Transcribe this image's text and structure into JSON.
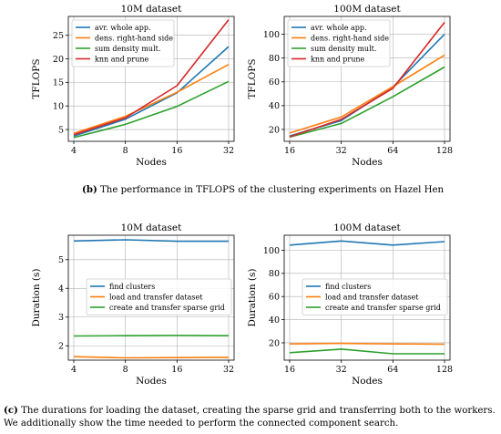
{
  "captions": {
    "b_label": "(b)",
    "b_text": "The performance in TFLOPS of the clustering experiments on Hazel Hen",
    "c_label": "(c)",
    "c_line1": "The durations for loading the dataset, creating the sparse grid and transferring both to the workers.",
    "c_line2": "We additionally show the time needed to perform the connected component search."
  },
  "colors": {
    "blue": "#1f77b4",
    "orange": "#ff7f0e",
    "green": "#2ca02c",
    "red": "#d62728"
  },
  "chart_data": [
    {
      "type": "line",
      "title": "10M dataset",
      "xlabel": "Nodes",
      "ylabel": "TFLOPS",
      "x_scale": "log2",
      "categories": [
        "4",
        "8",
        "16",
        "32"
      ],
      "ylim": [
        2.5,
        29
      ],
      "yticks": [
        5,
        10,
        15,
        20,
        25
      ],
      "grid": true,
      "legend": "upper-left",
      "series": [
        {
          "name": "avr. whole app.",
          "color": "blue",
          "values": [
            3.6,
            7.2,
            12.8,
            22.6
          ]
        },
        {
          "name": "dens. right-hand side",
          "color": "orange",
          "values": [
            4.2,
            7.8,
            12.9,
            18.8
          ]
        },
        {
          "name": "sum density mult.",
          "color": "green",
          "values": [
            3.3,
            6.1,
            9.9,
            15.2
          ]
        },
        {
          "name": "knn and prune",
          "color": "red",
          "values": [
            3.9,
            7.5,
            14.3,
            28.3
          ]
        }
      ]
    },
    {
      "type": "line",
      "title": "100M dataset",
      "xlabel": "Nodes",
      "ylabel": "TFLOPS",
      "x_scale": "log2",
      "categories": [
        "16",
        "32",
        "64",
        "128"
      ],
      "ylim": [
        10,
        115
      ],
      "yticks": [
        20,
        40,
        60,
        80,
        100
      ],
      "grid": true,
      "legend": "upper-left",
      "series": [
        {
          "name": "avr. whole app.",
          "color": "blue",
          "values": [
            14.5,
            27.5,
            55.5,
            100
          ]
        },
        {
          "name": "dens. right-hand side",
          "color": "orange",
          "values": [
            17,
            30.5,
            56,
            82.5
          ]
        },
        {
          "name": "sum density mult.",
          "color": "green",
          "values": [
            13.5,
            25,
            47.5,
            72.5
          ]
        },
        {
          "name": "knn and prune",
          "color": "red",
          "values": [
            13.8,
            28.5,
            54.5,
            110
          ]
        }
      ]
    },
    {
      "type": "line",
      "title": "10M dataset",
      "xlabel": "Nodes",
      "ylabel": "Duration (s)",
      "x_scale": "log2",
      "categories": [
        "4",
        "8",
        "16",
        "32"
      ],
      "ylim": [
        1.5,
        5.85
      ],
      "yticks": [
        2,
        3,
        4,
        5
      ],
      "grid": true,
      "legend": "center-right",
      "series": [
        {
          "name": "find clusters",
          "color": "blue",
          "values": [
            5.65,
            5.69,
            5.64,
            5.64
          ]
        },
        {
          "name": "load and transfer dataset",
          "color": "orange",
          "values": [
            1.62,
            1.58,
            1.59,
            1.6
          ]
        },
        {
          "name": "create and transfer sparse grid",
          "color": "green",
          "values": [
            2.34,
            2.35,
            2.36,
            2.35
          ]
        }
      ]
    },
    {
      "type": "line",
      "title": "100M dataset",
      "xlabel": "Nodes",
      "ylabel": "Duration (s)",
      "x_scale": "log2",
      "categories": [
        "16",
        "32",
        "64",
        "128"
      ],
      "ylim": [
        5,
        113
      ],
      "yticks": [
        20,
        40,
        60,
        80,
        100
      ],
      "grid": true,
      "legend": "center-right",
      "series": [
        {
          "name": "find clusters",
          "color": "blue",
          "values": [
            104.5,
            108,
            104.5,
            107.5
          ]
        },
        {
          "name": "load and transfer dataset",
          "color": "orange",
          "values": [
            19,
            19.5,
            19,
            18.8
          ]
        },
        {
          "name": "create and transfer sparse grid",
          "color": "green",
          "values": [
            11.5,
            14.5,
            10.5,
            10.5
          ]
        }
      ]
    }
  ]
}
